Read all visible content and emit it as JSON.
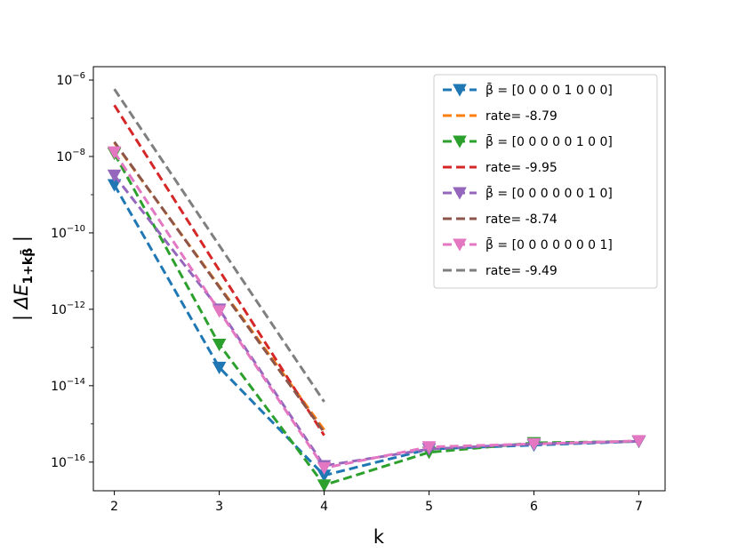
{
  "chart_data": {
    "type": "line",
    "xlabel": "k",
    "ylabel": "| ΔE",
    "ylabel_sub": "1+kβ̄",
    "ylabel_tail": " |",
    "yscale": "log",
    "xlim": [
      1.8,
      7.25
    ],
    "ylim_exp": [
      -16.75,
      -5.65
    ],
    "x_ticks": [
      2,
      3,
      4,
      5,
      6,
      7
    ],
    "x_tick_labels": [
      "2",
      "3",
      "4",
      "5",
      "6",
      "7"
    ],
    "y_ticks_exp": [
      -6,
      -8,
      -10,
      -12,
      -14,
      -16
    ],
    "y_tick_labels": [
      {
        "base": "10",
        "exp": "−6"
      },
      {
        "base": "10",
        "exp": "−8"
      },
      {
        "base": "10",
        "exp": "−10"
      },
      {
        "base": "10",
        "exp": "−12"
      },
      {
        "base": "10",
        "exp": "−14"
      },
      {
        "base": "10",
        "exp": "−16"
      }
    ],
    "grid": false,
    "legend_position": "top-right",
    "series": [
      {
        "name": "β̄ =  [0 0 0 0 1 0 0 0]",
        "kind": "data",
        "color": "#1f77b4",
        "x": [
          2,
          3,
          4,
          5,
          6,
          7
        ],
        "y": [
          1.8e-09,
          3e-14,
          4.5e-17,
          2.2e-16,
          2.8e-16,
          3.5e-16
        ]
      },
      {
        "name": "rate= -8.79",
        "kind": "rate",
        "color": "#ff7f0e",
        "x": [
          2,
          4
        ],
        "y": [
          2.3e-08,
          7e-16
        ]
      },
      {
        "name": "β̄ =  [0 0 0 0 0 1 0 0]",
        "kind": "data",
        "color": "#2ca02c",
        "x": [
          2,
          3,
          4,
          5,
          6,
          7
        ],
        "y": [
          1.2e-08,
          1.2e-13,
          2.5e-17,
          1.8e-16,
          3.2e-16,
          3.5e-16
        ]
      },
      {
        "name": "rate= -9.95",
        "kind": "rate",
        "color": "#d62728",
        "x": [
          2,
          4
        ],
        "y": [
          2.2e-07,
          5e-16
        ]
      },
      {
        "name": "β̄ =  [0 0 0 0 0 0 1 0]",
        "kind": "data",
        "color": "#9467bd",
        "x": [
          2,
          3,
          4,
          5,
          6,
          7
        ],
        "y": [
          3.2e-09,
          1e-12,
          8e-17,
          2.2e-16,
          3e-16,
          3.5e-16
        ]
      },
      {
        "name": "rate= -8.74",
        "kind": "rate",
        "color": "#8c564b",
        "x": [
          2,
          4
        ],
        "y": [
          2.4e-08,
          6e-16
        ]
      },
      {
        "name": "β̄ =  [0 0 0 0 0 0 0 1]",
        "kind": "data",
        "color": "#e377c2",
        "x": [
          2,
          3,
          4,
          5,
          6,
          7
        ],
        "y": [
          1.3e-08,
          9e-13,
          7e-17,
          2.5e-16,
          3e-16,
          3.6e-16
        ]
      },
      {
        "name": "rate= -9.49",
        "kind": "rate",
        "color": "#7f7f7f",
        "x": [
          2,
          4
        ],
        "y": [
          5.8e-07,
          3.8e-15
        ]
      }
    ]
  }
}
